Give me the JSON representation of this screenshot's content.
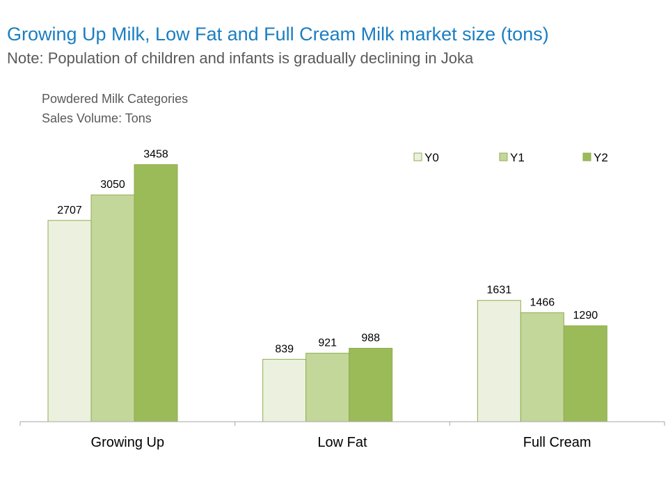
{
  "header": {
    "title": "Growing Up Milk, Low Fat and Full Cream Milk market size (tons)",
    "subtitle": "Note: Population of children and infants is gradually declining in Joka"
  },
  "captions": {
    "line1": "Powdered Milk Categories",
    "line2": "Sales Volume: Tons"
  },
  "chart_data": {
    "type": "bar",
    "categories": [
      "Growing Up",
      "Low Fat",
      "Full Cream"
    ],
    "series": [
      {
        "name": "Y0",
        "values": [
          2707,
          839,
          1631
        ],
        "color": "#ebf1de"
      },
      {
        "name": "Y1",
        "values": [
          3050,
          921,
          1466
        ],
        "color": "#c4d79b"
      },
      {
        "name": "Y2",
        "values": [
          3458,
          988,
          1290
        ],
        "color": "#9bbb59"
      }
    ],
    "ylim": [
      0,
      3800
    ],
    "legend": "top-right",
    "grid": false,
    "border_color": "#8fac4f"
  }
}
